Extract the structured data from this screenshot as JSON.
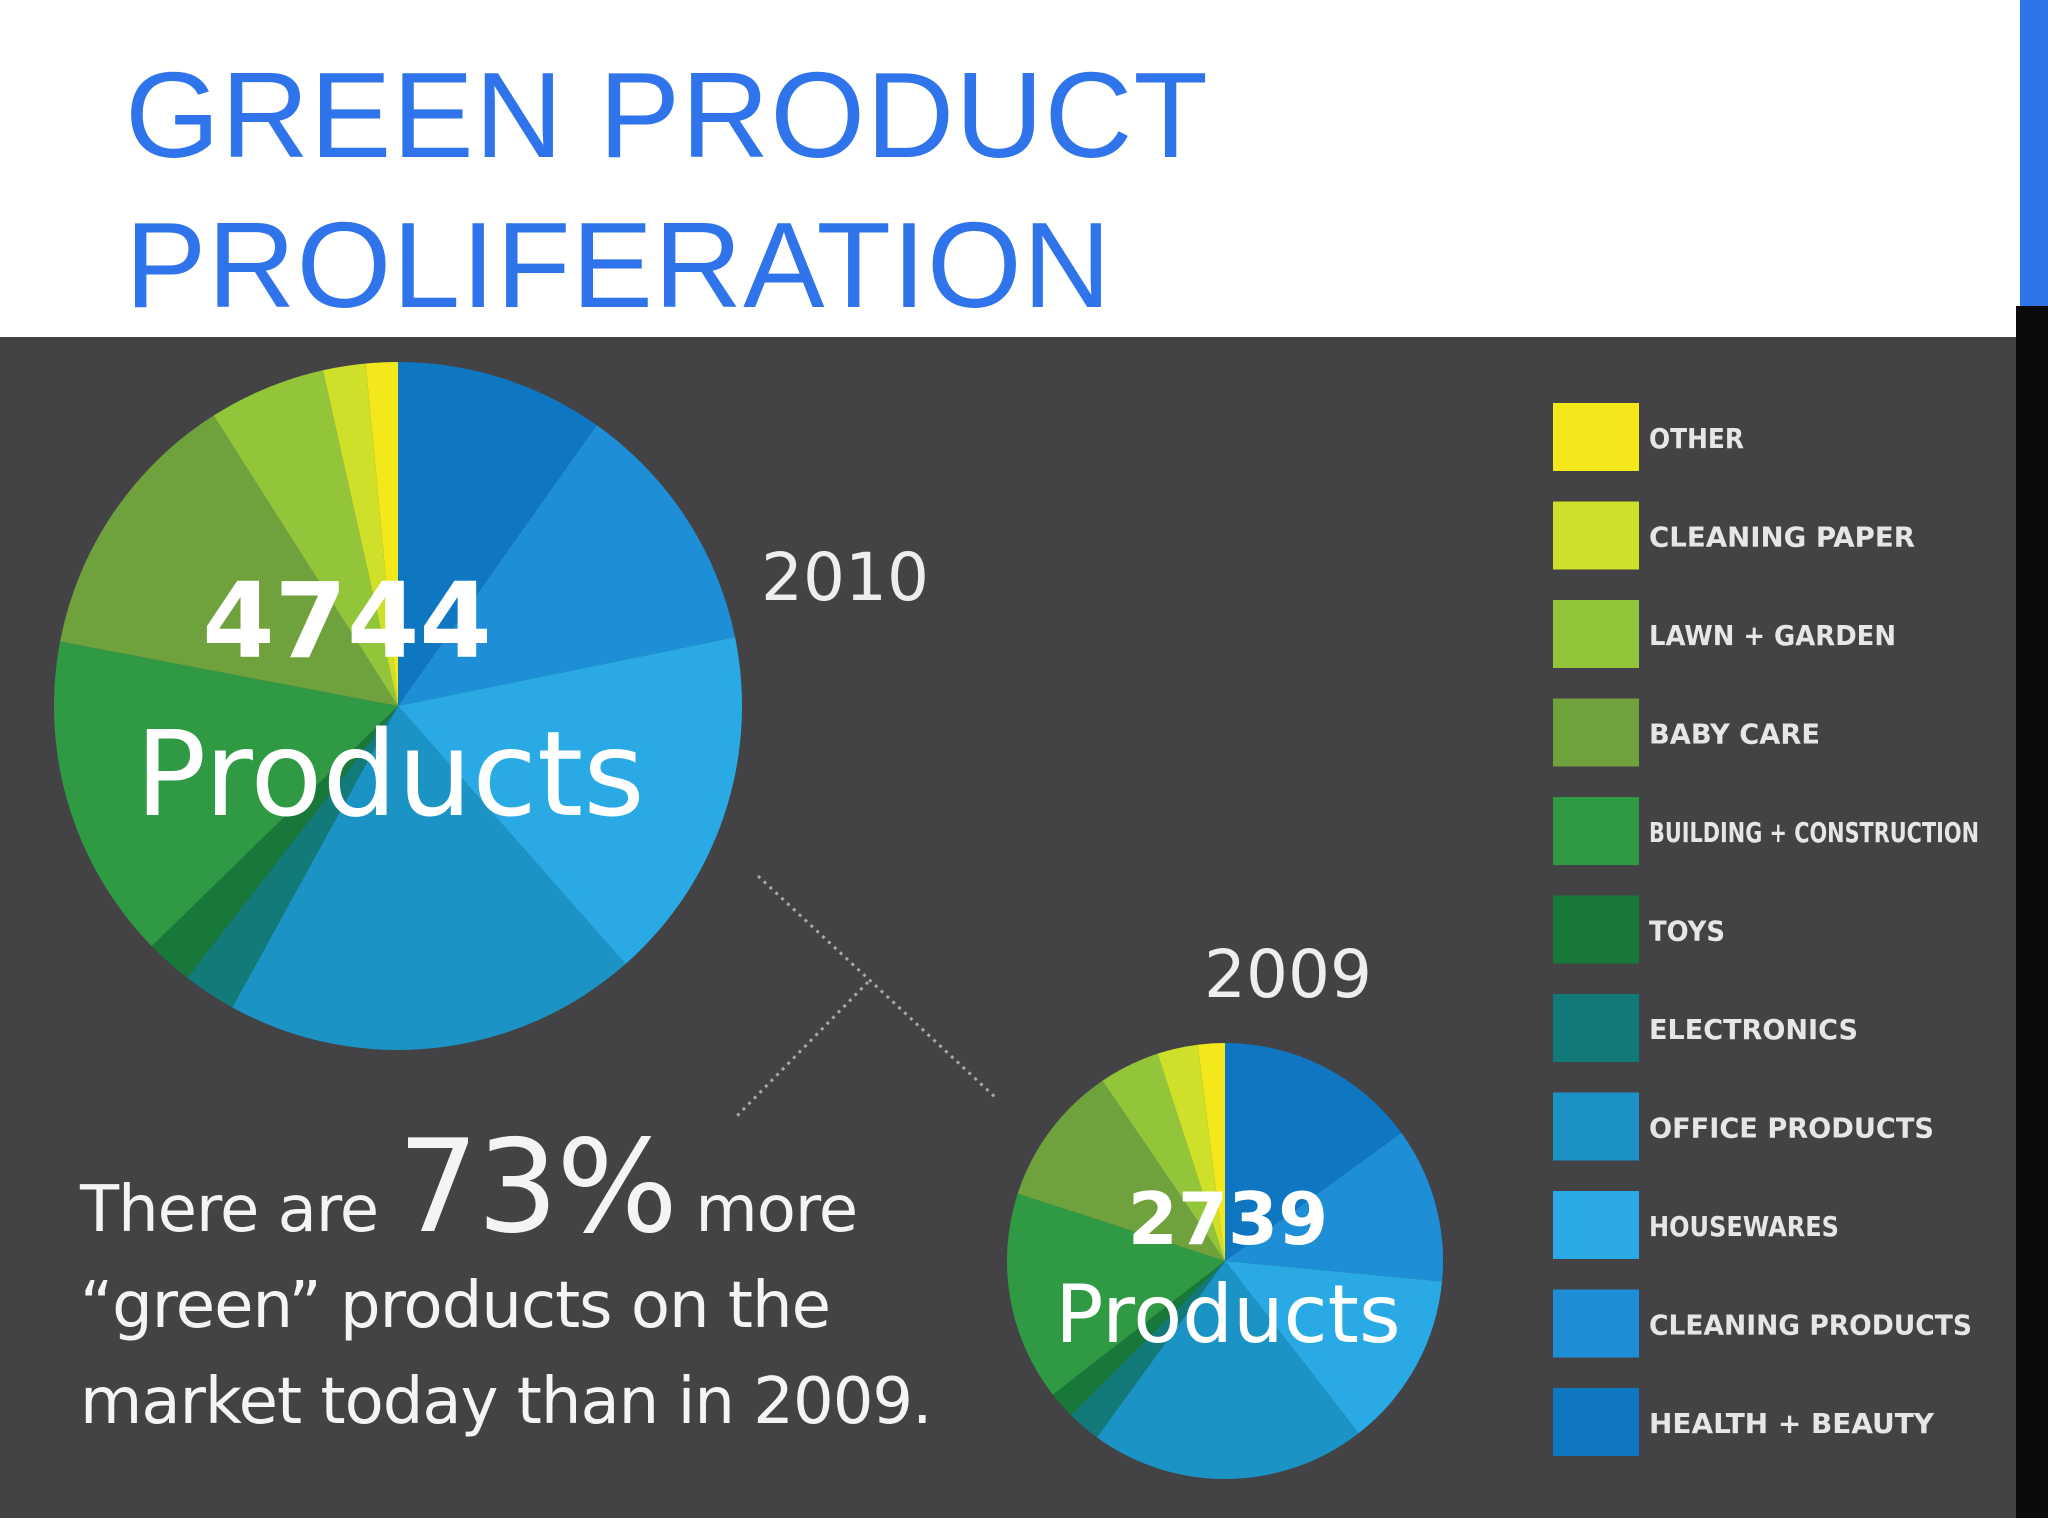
{
  "slide": {
    "title_line1": "GREEN PRODUCT",
    "title_line2": "PROLIFERATION"
  },
  "colors": {
    "title": "#2f74ea",
    "panel_background": "#434244",
    "categories": {
      "OTHER": "#f4e81a",
      "CLEANING PAPER": "#cfe02a",
      "LAWN + GARDEN": "#93c53a",
      "BABY CARE": "#6fa23d",
      "BUILDING + CONSTRUCTION": "#2f9a43",
      "TOYS": "#18783a",
      "ELECTRONICS": "#137a7a",
      "OFFICE PRODUCTS": "#1b93c4",
      "HOUSEWARES": "#29aae4",
      "CLEANING PRODUCTS": "#1e8fd6",
      "HEALTH + BEAUTY": "#0f76c2"
    }
  },
  "caption": {
    "part1": "There are ",
    "big": "73%",
    "part2": " more",
    "line2": "“green” products on the",
    "line3": "market today than in 2009."
  },
  "chart_data": {
    "type": "pie",
    "legend": {
      "placement": "right",
      "items": [
        "OTHER",
        "CLEANING PAPER",
        "LAWN + GARDEN",
        "BABY CARE",
        "BUILDING + CONSTRUCTION",
        "TOYS",
        "ELECTRONICS",
        "OFFICE PRODUCTS",
        "HOUSEWARES",
        "CLEANING PRODUCTS",
        "HEALTH + BEAUTY"
      ]
    },
    "pies": [
      {
        "year": "2010",
        "total": "4744",
        "unit": "Products",
        "slices_start_at": "12 o'clock, clockwise",
        "slices": [
          {
            "category": "HEALTH + BEAUTY",
            "share": 0.098
          },
          {
            "category": "CLEANING PRODUCTS",
            "share": 0.12
          },
          {
            "category": "HOUSEWARES",
            "share": 0.167
          },
          {
            "category": "OFFICE PRODUCTS",
            "share": 0.195
          },
          {
            "category": "ELECTRONICS",
            "share": 0.025
          },
          {
            "category": "TOYS",
            "share": 0.022
          },
          {
            "category": "BUILDING + CONSTRUCTION",
            "share": 0.153
          },
          {
            "category": "BABY CARE",
            "share": 0.13
          },
          {
            "category": "LAWN + GARDEN",
            "share": 0.055
          },
          {
            "category": "CLEANING PAPER",
            "share": 0.02
          },
          {
            "category": "OTHER",
            "share": 0.015
          }
        ]
      },
      {
        "year": "2009",
        "total": "2739",
        "unit": "Products",
        "slices_start_at": "12 o'clock, clockwise",
        "slices": [
          {
            "category": "HEALTH + BEAUTY",
            "share": 0.15
          },
          {
            "category": "CLEANING PRODUCTS",
            "share": 0.115
          },
          {
            "category": "HOUSEWARES",
            "share": 0.13
          },
          {
            "category": "OFFICE PRODUCTS",
            "share": 0.205
          },
          {
            "category": "ELECTRONICS",
            "share": 0.025
          },
          {
            "category": "TOYS",
            "share": 0.02
          },
          {
            "category": "BUILDING + CONSTRUCTION",
            "share": 0.155
          },
          {
            "category": "BABY CARE",
            "share": 0.105
          },
          {
            "category": "LAWN + GARDEN",
            "share": 0.045
          },
          {
            "category": "CLEANING PAPER",
            "share": 0.03
          },
          {
            "category": "OTHER",
            "share": 0.02
          }
        ]
      }
    ]
  }
}
